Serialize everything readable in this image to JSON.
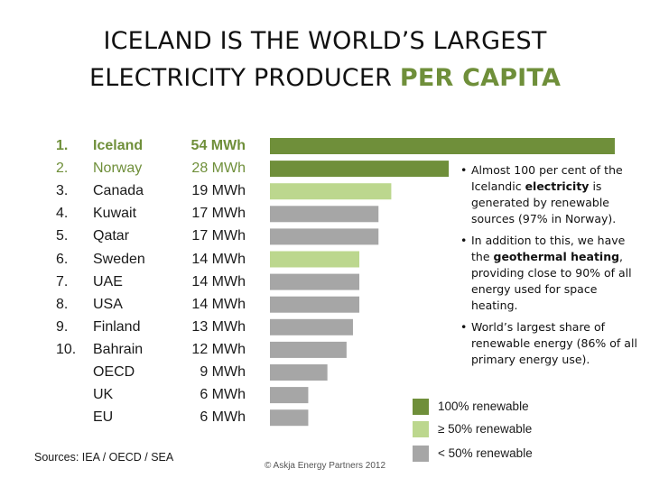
{
  "title": {
    "line1": "ICELAND IS THE WORLD’S LARGEST",
    "line2_prefix": "ELECTRICITY PRODUCER ",
    "line2_accent": "PER CAPITA"
  },
  "chart_data": {
    "type": "bar",
    "orientation": "horizontal",
    "unit": "MWh",
    "xlim": [
      0,
      54
    ],
    "grid": false,
    "categories": [
      "Iceland",
      "Norway",
      "Canada",
      "Kuwait",
      "Qatar",
      "Sweden",
      "UAE",
      "USA",
      "Finland",
      "Bahrain",
      "OECD",
      "UK",
      "EU"
    ],
    "ranks": [
      "1.",
      "2.",
      "3.",
      "4.",
      "5.",
      "6.",
      "7.",
      "8.",
      "9.",
      "10.",
      "",
      "",
      ""
    ],
    "value_labels": [
      "54 MWh",
      "28 MWh",
      "19 MWh",
      "17 MWh",
      "17 MWh",
      "14 MWh",
      "14 MWh",
      "14 MWh",
      "13 MWh",
      "12 MWh",
      "9 MWh",
      "6 MWh",
      "6 MWh"
    ],
    "values": [
      54,
      28,
      19,
      17,
      17,
      14,
      14,
      14,
      13,
      12,
      9,
      6,
      6
    ],
    "renewable_class": [
      "100",
      "100",
      "50",
      "low",
      "low",
      "50",
      "low",
      "low",
      "low",
      "low",
      "low",
      "low",
      "low"
    ],
    "legend": [
      {
        "key": "100",
        "label": "100% renewable"
      },
      {
        "key": "50",
        "label": "≥ 50% renewable"
      },
      {
        "key": "low",
        "label": "< 50% renewable"
      }
    ],
    "legend_placement": "bottom-right"
  },
  "colors": {
    "100": "#6f8f3a",
    "50": "#bcd78e",
    "low": "#a6a6a6",
    "accent": "#6f8f3a"
  },
  "notes": {
    "n1_pre": "Almost 100 per cent of the Icelandic ",
    "n1_bold": "electricity",
    "n1_post": " is generated by renewable sources (97% in Norway).",
    "n2_pre": "In addition to this, we have the ",
    "n2_bold": "geothermal heating",
    "n2_post": ", providing close to 90% of all energy used for space heating.",
    "n3": "World’s largest share of renewable energy (86% of all primary energy use)."
  },
  "footer": {
    "sources": "Sources: IEA / OECD / SEA",
    "copyright": "© Askja Energy Partners 2012"
  }
}
